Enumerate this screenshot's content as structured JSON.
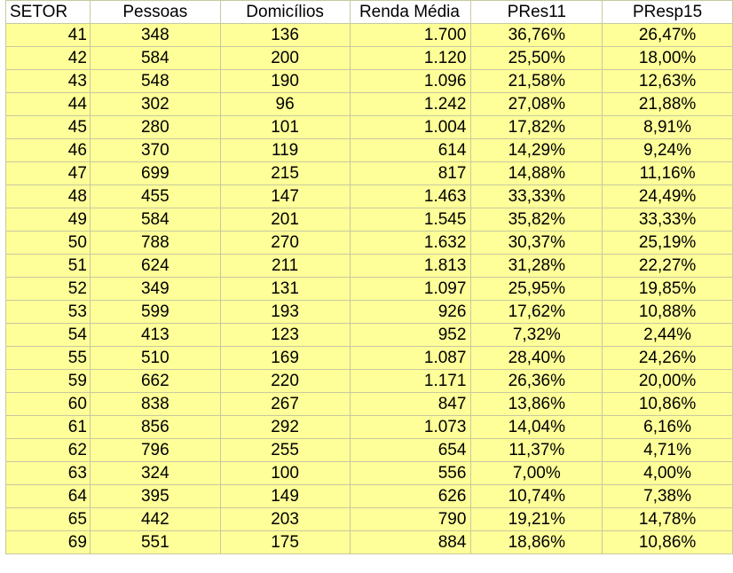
{
  "headers": [
    "SETOR",
    "Pessoas",
    "Domicílios",
    "Renda Média",
    "PRes11",
    "PResp15"
  ],
  "rows": [
    [
      "41",
      "348",
      "136",
      "1.700",
      "36,76%",
      "26,47%"
    ],
    [
      "42",
      "584",
      "200",
      "1.120",
      "25,50%",
      "18,00%"
    ],
    [
      "43",
      "548",
      "190",
      "1.096",
      "21,58%",
      "12,63%"
    ],
    [
      "44",
      "302",
      "96",
      "1.242",
      "27,08%",
      "21,88%"
    ],
    [
      "45",
      "280",
      "101",
      "1.004",
      "17,82%",
      "8,91%"
    ],
    [
      "46",
      "370",
      "119",
      "614",
      "14,29%",
      "9,24%"
    ],
    [
      "47",
      "699",
      "215",
      "817",
      "14,88%",
      "11,16%"
    ],
    [
      "48",
      "455",
      "147",
      "1.463",
      "33,33%",
      "24,49%"
    ],
    [
      "49",
      "584",
      "201",
      "1.545",
      "35,82%",
      "33,33%"
    ],
    [
      "50",
      "788",
      "270",
      "1.632",
      "30,37%",
      "25,19%"
    ],
    [
      "51",
      "624",
      "211",
      "1.813",
      "31,28%",
      "22,27%"
    ],
    [
      "52",
      "349",
      "131",
      "1.097",
      "25,95%",
      "19,85%"
    ],
    [
      "53",
      "599",
      "193",
      "926",
      "17,62%",
      "10,88%"
    ],
    [
      "54",
      "413",
      "123",
      "952",
      "7,32%",
      "2,44%"
    ],
    [
      "55",
      "510",
      "169",
      "1.087",
      "28,40%",
      "24,26%"
    ],
    [
      "59",
      "662",
      "220",
      "1.171",
      "26,36%",
      "20,00%"
    ],
    [
      "60",
      "838",
      "267",
      "847",
      "13,86%",
      "10,86%"
    ],
    [
      "61",
      "856",
      "292",
      "1.073",
      "14,04%",
      "6,16%"
    ],
    [
      "62",
      "796",
      "255",
      "654",
      "11,37%",
      "4,71%"
    ],
    [
      "63",
      "324",
      "100",
      "556",
      "7,00%",
      "4,00%"
    ],
    [
      "64",
      "395",
      "149",
      "626",
      "10,74%",
      "7,38%"
    ],
    [
      "65",
      "442",
      "203",
      "790",
      "19,21%",
      "14,78%"
    ],
    [
      "69",
      "551",
      "175",
      "884",
      "18,86%",
      "10,86%"
    ]
  ],
  "colors": {
    "row_fill": "#ffff99",
    "header_fill": "#ffffff",
    "grid": "#c8c8a0"
  }
}
